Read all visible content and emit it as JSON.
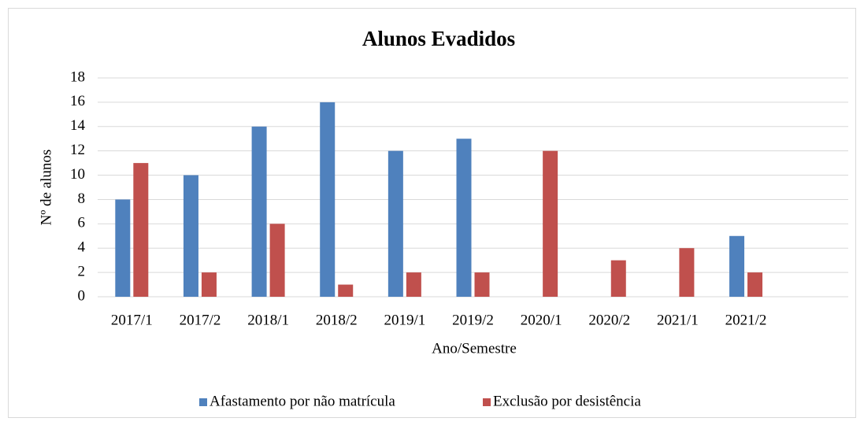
{
  "chart_data": {
    "type": "bar",
    "title": "Alunos Evadidos",
    "categories": [
      "2017/1",
      "2017/2",
      "2018/1",
      "2018/2",
      "2019/1",
      "2019/2",
      "2020/1",
      "2020/2",
      "2021/1",
      "2021/2",
      null
    ],
    "series": [
      {
        "name": "Afastamento por não matrícula",
        "color": "#4f81bd",
        "values": [
          8,
          10,
          14,
          16,
          12,
          13,
          0,
          0,
          0,
          5,
          null
        ]
      },
      {
        "name": "Exclusão por desistência",
        "color": "#c0504d",
        "values": [
          11,
          2,
          6,
          1,
          2,
          2,
          12,
          3,
          4,
          2,
          null
        ]
      }
    ],
    "xlabel": "Ano/Semestre",
    "ylabel": "Nº de alunos",
    "ylim": [
      0,
      18
    ],
    "yticks": [
      0,
      2,
      4,
      6,
      8,
      10,
      12,
      14,
      16,
      18
    ],
    "grid": true,
    "legend": "bottom"
  }
}
